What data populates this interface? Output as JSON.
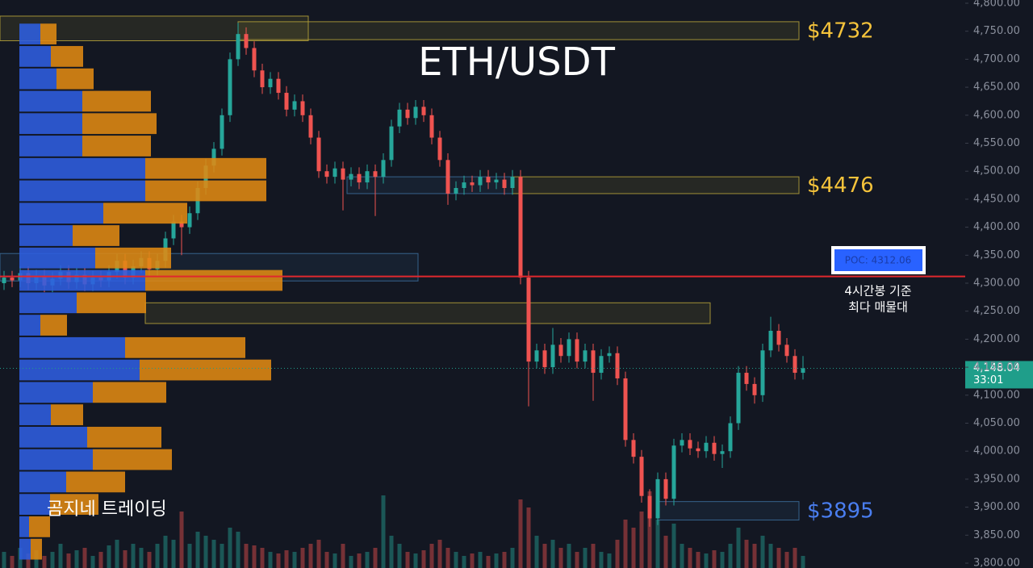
{
  "chart_data": {
    "type": "candlestick",
    "title": "ETH/USDT",
    "watermark": "곰지네 트레이딩",
    "ylim": [
      3800,
      4800
    ],
    "yticks": [
      {
        "value": 3800,
        "label": "3,800.00"
      },
      {
        "value": 3850,
        "label": "3,850.00"
      },
      {
        "value": 3900,
        "label": "3,900.00"
      },
      {
        "value": 3950,
        "label": "3,950.00"
      },
      {
        "value": 4000,
        "label": "4,000.00"
      },
      {
        "value": 4050,
        "label": "4,050.00"
      },
      {
        "value": 4100,
        "label": "4,100.00"
      },
      {
        "value": 4150,
        "label": "4,150.00"
      },
      {
        "value": 4200,
        "label": "4,200.00"
      },
      {
        "value": 4250,
        "label": "4,250.00"
      },
      {
        "value": 4300,
        "label": "4,300.00"
      },
      {
        "value": 4350,
        "label": "4,350.00"
      },
      {
        "value": 4400,
        "label": "4,400.00"
      },
      {
        "value": 4450,
        "label": "4,450.00"
      },
      {
        "value": 4500,
        "label": "4,500.00"
      },
      {
        "value": 4550,
        "label": "4,550.00"
      },
      {
        "value": 4600,
        "label": "4,600.00"
      },
      {
        "value": 4650,
        "label": "4,650.00"
      },
      {
        "value": 4700,
        "label": "4,700.00"
      },
      {
        "value": 4750,
        "label": "4,750.00"
      },
      {
        "value": 4800,
        "label": "4,800.00"
      }
    ],
    "grid": false,
    "up_color": "#26a69a",
    "down_color": "#ef5350",
    "open": [
      4300,
      4310,
      4305,
      4318,
      4300,
      4312,
      4296,
      4308,
      4320,
      4302,
      4315,
      4298,
      4310,
      4305,
      4320,
      4340,
      4310,
      4330,
      4345,
      4325,
      4340,
      4380,
      4410,
      4400,
      4425,
      4470,
      4510,
      4540,
      4600,
      4700,
      4745,
      4720,
      4680,
      4650,
      4665,
      4640,
      4610,
      4625,
      4600,
      4560,
      4500,
      4490,
      4505,
      4485,
      4495,
      4480,
      4500,
      4490,
      4520,
      4580,
      4610,
      4595,
      4615,
      4600,
      4560,
      4520,
      4460,
      4470,
      4480,
      4475,
      4490,
      4480,
      4485,
      4470,
      4490,
      4310,
      4160,
      4180,
      4150,
      4190,
      4170,
      4200,
      4160,
      4180,
      4140,
      4170,
      4175,
      4130,
      4020,
      3990,
      3920,
      3880,
      3950,
      3915,
      4010,
      4020,
      4005,
      4000,
      4015,
      3995,
      4000,
      4050,
      4140,
      4120,
      4100,
      4180,
      4215,
      4190,
      4170,
      4140
    ],
    "high": [
      4322,
      4322,
      4330,
      4330,
      4324,
      4324,
      4320,
      4332,
      4332,
      4327,
      4327,
      4322,
      4322,
      4332,
      4352,
      4352,
      4342,
      4357,
      4357,
      4352,
      4392,
      4422,
      4422,
      4437,
      4482,
      4522,
      4552,
      4612,
      4712,
      4765,
      4757,
      4732,
      4692,
      4677,
      4677,
      4652,
      4637,
      4637,
      4612,
      4572,
      4512,
      4517,
      4517,
      4507,
      4507,
      4512,
      4512,
      4532,
      4592,
      4622,
      4622,
      4627,
      4627,
      4612,
      4572,
      4532,
      4482,
      4492,
      4492,
      4502,
      4502,
      4497,
      4497,
      4502,
      4502,
      4322,
      4192,
      4192,
      4220,
      4202,
      4212,
      4212,
      4192,
      4192,
      4182,
      4187,
      4187,
      4142,
      4032,
      4002,
      3932,
      3962,
      3962,
      4022,
      4032,
      4032,
      4017,
      4027,
      4027,
      4012,
      4062,
      4152,
      4152,
      4132,
      4192,
      4240,
      4227,
      4202,
      4182,
      4170
    ],
    "low": [
      4288,
      4293,
      4293,
      4288,
      4288,
      4284,
      4284,
      4296,
      4290,
      4290,
      4286,
      4286,
      4293,
      4293,
      4308,
      4298,
      4298,
      4318,
      4313,
      4313,
      4328,
      4368,
      4350,
      4388,
      4413,
      4458,
      4498,
      4528,
      4588,
      4688,
      4708,
      4668,
      4638,
      4638,
      4628,
      4598,
      4598,
      4588,
      4548,
      4488,
      4478,
      4478,
      4430,
      4473,
      4468,
      4468,
      4420,
      4478,
      4508,
      4568,
      4583,
      4583,
      4588,
      4548,
      4508,
      4440,
      4448,
      4458,
      4463,
      4463,
      4468,
      4468,
      4458,
      4458,
      4298,
      4080,
      4148,
      4138,
      4138,
      4158,
      4158,
      4148,
      4148,
      4090,
      4128,
      4158,
      4118,
      4008,
      3978,
      3908,
      3865,
      3868,
      3903,
      3903,
      3998,
      3993,
      3988,
      3988,
      3983,
      3970,
      3988,
      4038,
      4108,
      4085,
      4088,
      4168,
      4178,
      4158,
      4128,
      4128
    ],
    "close": [
      4310,
      4305,
      4318,
      4300,
      4312,
      4296,
      4308,
      4320,
      4302,
      4315,
      4298,
      4310,
      4305,
      4320,
      4340,
      4310,
      4330,
      4345,
      4325,
      4340,
      4380,
      4410,
      4400,
      4425,
      4470,
      4510,
      4540,
      4600,
      4700,
      4745,
      4720,
      4680,
      4650,
      4665,
      4640,
      4610,
      4625,
      4600,
      4560,
      4500,
      4490,
      4505,
      4485,
      4495,
      4480,
      4500,
      4490,
      4520,
      4580,
      4610,
      4595,
      4615,
      4600,
      4560,
      4520,
      4460,
      4470,
      4480,
      4475,
      4490,
      4480,
      4485,
      4470,
      4490,
      4310,
      4160,
      4180,
      4150,
      4190,
      4170,
      4200,
      4160,
      4180,
      4140,
      4170,
      4175,
      4130,
      4020,
      3990,
      3920,
      3880,
      3950,
      3915,
      4010,
      4020,
      4005,
      4000,
      4015,
      3995,
      4000,
      4050,
      4140,
      4120,
      4100,
      4180,
      4215,
      4190,
      4170,
      4140,
      4148
    ],
    "volume": [
      20,
      15,
      25,
      18,
      22,
      15,
      20,
      30,
      18,
      22,
      25,
      15,
      20,
      28,
      35,
      22,
      30,
      25,
      20,
      30,
      40,
      35,
      70,
      30,
      45,
      40,
      35,
      30,
      50,
      45,
      30,
      28,
      25,
      20,
      18,
      22,
      20,
      25,
      30,
      35,
      20,
      18,
      30,
      15,
      18,
      20,
      25,
      90,
      40,
      30,
      20,
      18,
      22,
      30,
      35,
      25,
      20,
      15,
      18,
      20,
      15,
      18,
      20,
      25,
      85,
      75,
      40,
      30,
      35,
      25,
      30,
      20,
      25,
      30,
      20,
      18,
      35,
      60,
      50,
      70,
      95,
      60,
      40,
      55,
      30,
      25,
      20,
      18,
      22,
      20,
      30,
      50,
      35,
      30,
      40,
      30,
      25,
      20,
      25,
      15
    ],
    "volume_profile": {
      "bins": [
        3805,
        3845,
        3885,
        3925,
        3965,
        4005,
        4045,
        4085,
        4125,
        4165,
        4205,
        4245,
        4285,
        4325,
        4365,
        4405,
        4445,
        4485,
        4525,
        4565,
        4605,
        4645,
        4685,
        4725,
        4765
      ],
      "buy": [
        14,
        12,
        38,
        58,
        91,
        84,
        39,
        91,
        149,
        131,
        26,
        71,
        156,
        94,
        66,
        104,
        156,
        156,
        78,
        78,
        78,
        46,
        39,
        26
      ],
      "sell": [
        14,
        26,
        60,
        73,
        98,
        92,
        40,
        91,
        163,
        149,
        33,
        86,
        170,
        94,
        58,
        104,
        150,
        150,
        85,
        92,
        85,
        46,
        40,
        20
      ],
      "buy_color": "#2f5fe0",
      "sell_color": "#e08a12"
    },
    "zones": [
      {
        "label": "$4732",
        "low": 4735,
        "high": 4767,
        "color": "#b8a53a",
        "label_color": "#f5c33b"
      },
      {
        "low": 4733,
        "high": 4777,
        "color": "#b8a53a"
      },
      {
        "label": "$4476",
        "low": 4460,
        "high": 4490,
        "color": "#b8a53a",
        "label_color": "#f5c33b"
      },
      {
        "low": 4460,
        "high": 4490,
        "color": "#3c6e9e"
      },
      {
        "low": 4304,
        "high": 4353,
        "color": "#3c6e9e"
      },
      {
        "low": 4228,
        "high": 4265,
        "color": "#b8a53a"
      },
      {
        "label": "$3895",
        "low": 3877,
        "high": 3910,
        "color": "#3c6e9e",
        "label_color": "#4a7ef0"
      }
    ],
    "poc": {
      "value": 4312.06,
      "label": "POC: 4312.06",
      "color": "#e0282e",
      "note": [
        "4시간봉 기준",
        "최다 매물대"
      ]
    },
    "last_price": {
      "value": 4148.04,
      "label": "4,148.04",
      "countdown": "33:01",
      "color": "#1f9e8a"
    }
  }
}
